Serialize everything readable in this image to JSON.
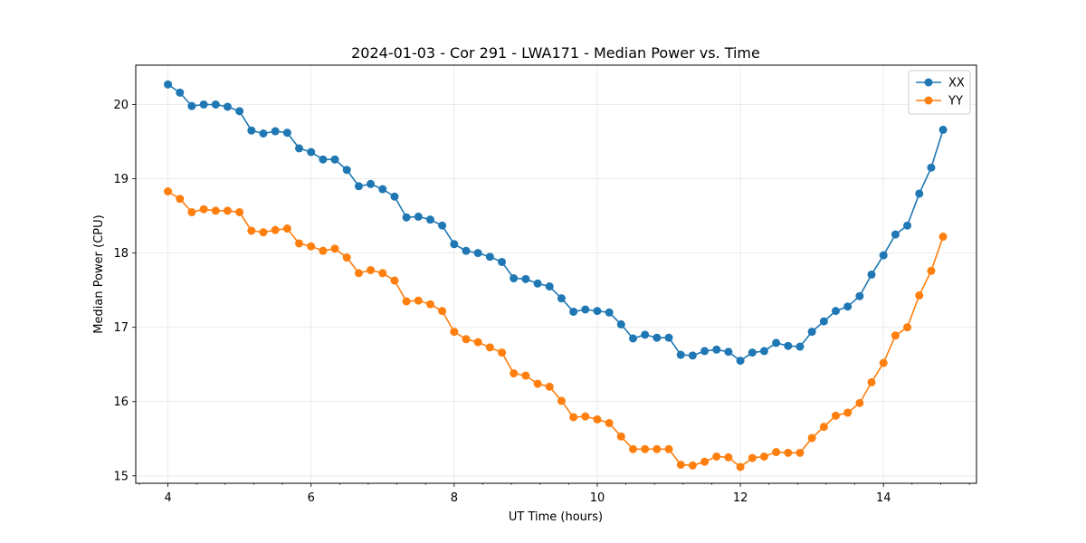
{
  "chart_data": {
    "type": "line",
    "title": "2024-01-03 - Cor 291 - LWA171 - Median Power vs. Time",
    "xlabel": "UT Time (hours)",
    "ylabel": "Median Power (CPU)",
    "xlim": [
      3.55,
      15.3
    ],
    "ylim": [
      14.9,
      20.53
    ],
    "xticks": [
      4,
      6,
      8,
      10,
      12,
      14
    ],
    "xtick_labels": [
      "4",
      "6",
      "8",
      "10",
      "12",
      "14"
    ],
    "x_minor_step": 0.4,
    "yticks": [
      15,
      16,
      17,
      18,
      19,
      20
    ],
    "ytick_labels": [
      "15",
      "16",
      "17",
      "18",
      "19",
      "20"
    ],
    "grid": true,
    "legend_position": "top-right",
    "x": [
      4.0,
      4.167,
      4.333,
      4.5,
      4.667,
      4.833,
      5.0,
      5.167,
      5.333,
      5.5,
      5.667,
      5.833,
      6.0,
      6.167,
      6.333,
      6.5,
      6.667,
      6.833,
      7.0,
      7.167,
      7.333,
      7.5,
      7.667,
      7.833,
      8.0,
      8.167,
      8.333,
      8.5,
      8.667,
      8.833,
      9.0,
      9.167,
      9.333,
      9.5,
      9.667,
      9.833,
      10.0,
      10.167,
      10.333,
      10.5,
      10.667,
      10.833,
      11.0,
      11.167,
      11.333,
      11.5,
      11.667,
      11.833,
      12.0,
      12.167,
      12.333,
      12.5,
      12.667,
      12.833,
      13.0,
      13.167,
      13.333,
      13.5,
      13.667,
      13.833,
      14.0,
      14.167,
      14.333,
      14.5,
      14.667,
      14.833
    ],
    "series": [
      {
        "name": "XX",
        "color": "#1f77b4",
        "values": [
          20.27,
          20.16,
          19.98,
          20.0,
          20.0,
          19.97,
          19.91,
          19.65,
          19.61,
          19.64,
          19.62,
          19.41,
          19.36,
          19.26,
          19.26,
          19.12,
          18.9,
          18.93,
          18.86,
          18.76,
          18.48,
          18.49,
          18.45,
          18.37,
          18.12,
          18.03,
          18.0,
          17.95,
          17.88,
          17.66,
          17.65,
          17.59,
          17.55,
          17.39,
          17.21,
          17.24,
          17.22,
          17.2,
          17.04,
          16.85,
          16.9,
          16.86,
          16.86,
          16.63,
          16.62,
          16.68,
          16.7,
          16.67,
          16.55,
          16.66,
          16.68,
          16.79,
          16.75,
          16.74,
          16.94,
          17.08,
          17.22,
          17.28,
          17.42,
          17.71,
          17.97,
          18.25,
          18.37,
          18.8,
          19.15,
          19.66
        ]
      },
      {
        "name": "YY",
        "color": "#ff7f0e",
        "values": [
          18.83,
          18.73,
          18.55,
          18.59,
          18.57,
          18.57,
          18.55,
          18.3,
          18.28,
          18.31,
          18.33,
          18.13,
          18.09,
          18.03,
          18.06,
          17.94,
          17.73,
          17.77,
          17.73,
          17.63,
          17.35,
          17.36,
          17.31,
          17.22,
          16.94,
          16.84,
          16.8,
          16.73,
          16.66,
          16.38,
          16.35,
          16.24,
          16.2,
          16.01,
          15.79,
          15.8,
          15.76,
          15.71,
          15.53,
          15.36,
          15.36,
          15.36,
          15.36,
          15.15,
          15.14,
          15.19,
          15.26,
          15.25,
          15.12,
          15.24,
          15.26,
          15.32,
          15.31,
          15.31,
          15.51,
          15.66,
          15.81,
          15.85,
          15.98,
          16.26,
          16.52,
          16.89,
          17.0,
          17.43,
          17.76,
          18.22
        ]
      }
    ]
  }
}
